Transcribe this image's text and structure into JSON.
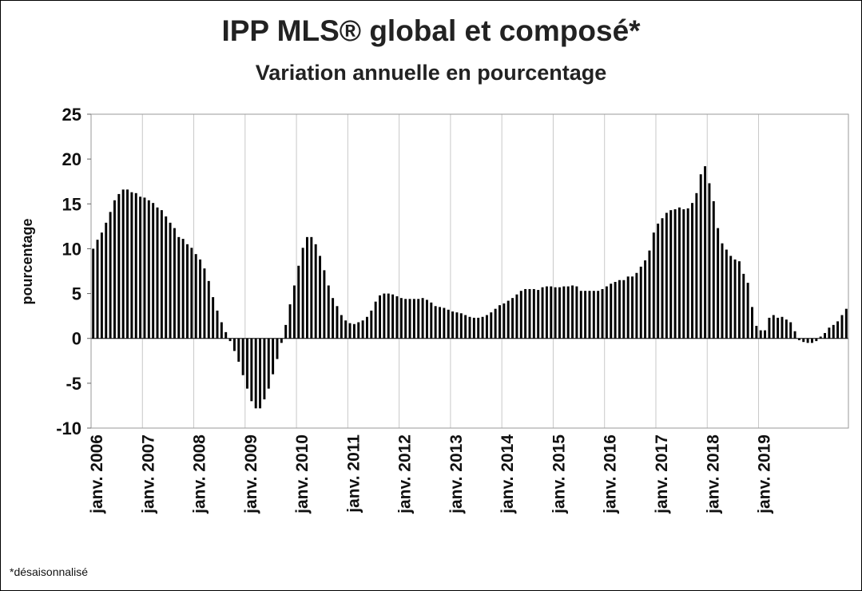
{
  "chart_data": {
    "type": "bar",
    "title": "IPP MLS® global et composé*",
    "subtitle": "Variation annuelle en pourcentage",
    "ylabel": "pourcentage",
    "xlabel": "",
    "ylim": [
      -10,
      25
    ],
    "yticks": [
      25,
      20,
      15,
      10,
      5,
      0,
      -5,
      -10
    ],
    "grid": "vertical",
    "footnote": "*désaisonnalisé",
    "x_tick_labels": [
      "janv. 2006",
      "janv. 2007",
      "janv. 2008",
      "janv. 2009",
      "janv. 2010",
      "janv. 2011",
      "janv. 2012",
      "janv. 2013",
      "janv. 2014",
      "janv. 2015",
      "janv. 2016",
      "janv. 2017",
      "janv. 2018",
      "janv. 2019"
    ],
    "frequency": "monthly",
    "start_period": "janv. 2006",
    "values": [
      10.0,
      11.0,
      11.8,
      12.9,
      14.1,
      15.4,
      16.1,
      16.6,
      16.6,
      16.3,
      16.2,
      15.8,
      15.7,
      15.4,
      15.1,
      14.6,
      14.3,
      13.6,
      12.9,
      12.3,
      11.3,
      11.1,
      10.5,
      10.1,
      9.4,
      8.8,
      7.8,
      6.4,
      4.6,
      3.1,
      1.8,
      0.7,
      -0.3,
      -1.4,
      -2.6,
      -4.1,
      -5.6,
      -7.0,
      -7.8,
      -7.8,
      -6.8,
      -5.6,
      -4.0,
      -2.3,
      -0.5,
      1.5,
      3.8,
      5.9,
      8.1,
      10.1,
      11.3,
      11.3,
      10.5,
      9.2,
      7.6,
      5.9,
      4.5,
      3.6,
      2.6,
      2.0,
      1.7,
      1.6,
      1.8,
      2.0,
      2.4,
      3.1,
      4.1,
      4.8,
      5.0,
      5.0,
      4.9,
      4.7,
      4.5,
      4.4,
      4.4,
      4.4,
      4.4,
      4.5,
      4.3,
      4.0,
      3.6,
      3.5,
      3.4,
      3.2,
      3.0,
      2.9,
      2.8,
      2.6,
      2.4,
      2.3,
      2.3,
      2.4,
      2.6,
      2.9,
      3.3,
      3.7,
      3.9,
      4.2,
      4.5,
      4.9,
      5.3,
      5.5,
      5.5,
      5.5,
      5.4,
      5.7,
      5.8,
      5.8,
      5.7,
      5.7,
      5.8,
      5.8,
      5.9,
      5.8,
      5.3,
      5.3,
      5.3,
      5.3,
      5.3,
      5.5,
      5.8,
      6.1,
      6.3,
      6.5,
      6.5,
      6.9,
      6.9,
      7.3,
      8.0,
      8.7,
      9.8,
      11.8,
      12.8,
      13.4,
      14.0,
      14.3,
      14.4,
      14.6,
      14.4,
      14.5,
      15.1,
      16.2,
      18.3,
      19.2,
      17.3,
      15.3,
      12.3,
      10.6,
      9.9,
      9.2,
      8.8,
      8.6,
      7.2,
      6.2,
      3.5,
      1.4,
      0.9,
      0.9,
      2.3,
      2.6,
      2.3,
      2.4,
      2.1,
      1.8,
      0.8,
      -0.2,
      -0.4,
      -0.5,
      -0.5,
      -0.3,
      0.2,
      0.6,
      1.2,
      1.5,
      1.9,
      2.6,
      3.3
    ]
  }
}
